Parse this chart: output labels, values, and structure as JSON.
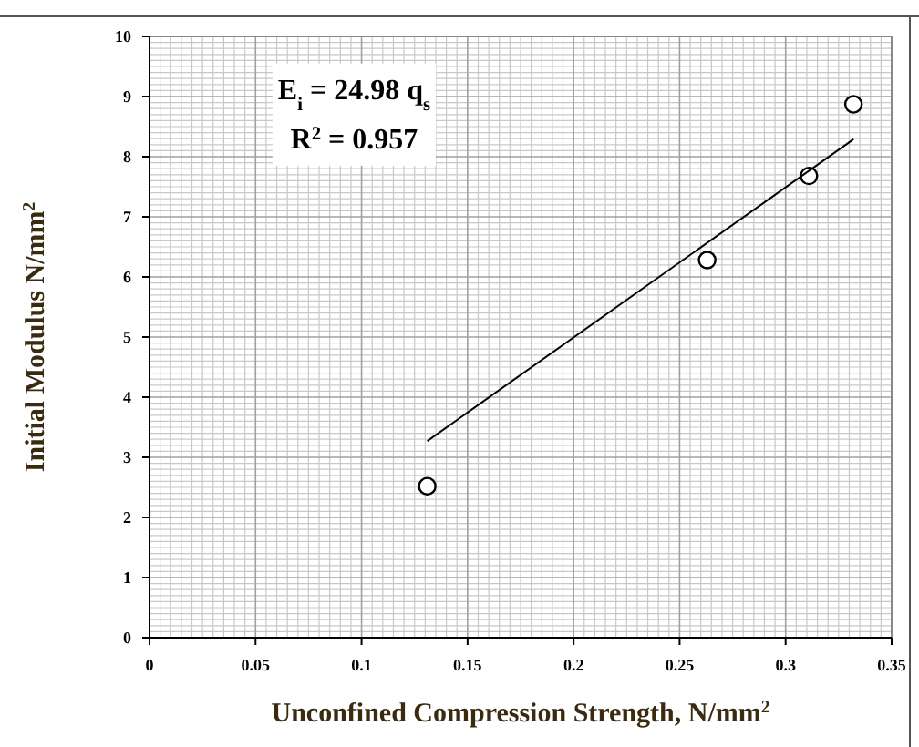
{
  "chart_data": {
    "type": "scatter",
    "xlabel": "Unconfined Compression Strength,  N/mm$^{2}$",
    "ylabel": "Initial Modulus N/mm$^{2}$",
    "annotations": [
      "E$_{i}$ = 24.98 q$_{s}$",
      "R$^{2}$ = 0.957"
    ],
    "series": [
      {
        "color": "#000000",
        "marker": "circle",
        "x": [
          0.131,
          0.263,
          0.311,
          0.332
        ],
        "values": [
          2.52,
          6.28,
          7.68,
          8.87
        ]
      },
      {
        "type": "line",
        "color": "#000000",
        "line_style": "solid",
        "x": [
          0.131,
          0.332
        ],
        "values": [
          3.27,
          8.29
        ]
      }
    ],
    "xlim": [
      0,
      0.35
    ],
    "xticks": [
      0,
      0.05,
      0.1,
      0.15,
      0.2,
      0.25,
      0.3,
      0.35
    ],
    "ylim": [
      0,
      10
    ],
    "yticks": [
      0,
      1,
      2,
      3,
      4,
      5,
      6,
      7,
      8,
      9,
      10
    ],
    "grid": true
  }
}
